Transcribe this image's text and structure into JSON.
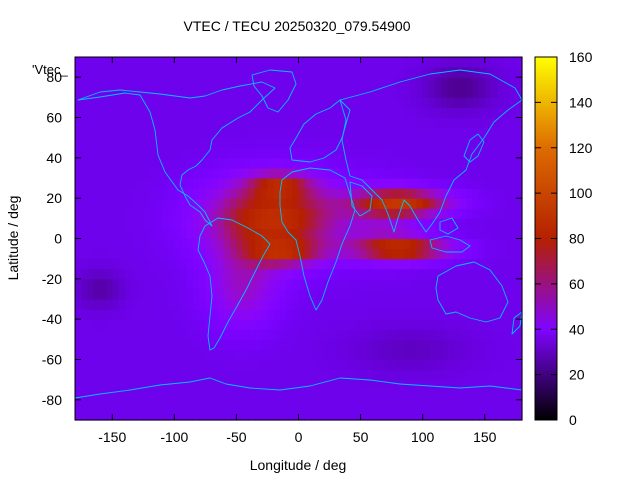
{
  "chart_data": {
    "type": "heatmap",
    "title": "VTEC / TECU 20250320_079.54900",
    "xlabel": "Longitude / deg",
    "ylabel": "Latitude / deg",
    "key_label": "'Vtec_",
    "xlim": [
      -180,
      180
    ],
    "ylim": [
      -90,
      90
    ],
    "x_ticks": [
      -150,
      -100,
      -50,
      0,
      50,
      100,
      150
    ],
    "y_ticks": [
      -80,
      -60,
      -40,
      -20,
      0,
      20,
      40,
      60,
      80
    ],
    "colorbar": {
      "range": [
        0,
        160
      ],
      "ticks": [
        0,
        20,
        40,
        60,
        80,
        100,
        120,
        140,
        160
      ]
    },
    "grid": false,
    "grid_step_deg": [
      5,
      5
    ],
    "vtec_model": {
      "background": 30,
      "blobs": [
        {
          "lon": -20,
          "lat": 10,
          "slon": 55,
          "slat": 20,
          "amp": 60
        },
        {
          "lon": -45,
          "lat": -25,
          "slon": 30,
          "slat": 20,
          "amp": 25
        },
        {
          "lon": -15,
          "lat": 27,
          "slon": 25,
          "slat": 6,
          "amp": 30
        },
        {
          "lon": -10,
          "lat": -7,
          "slon": 30,
          "slat": 6,
          "amp": 30
        },
        {
          "lon": 85,
          "lat": 18,
          "slon": 40,
          "slat": 7,
          "amp": 55
        },
        {
          "lon": 85,
          "lat": -5,
          "slon": 40,
          "slat": 6,
          "amp": 55
        },
        {
          "lon": 70,
          "lat": 8,
          "slon": 30,
          "slat": 18,
          "amp": 15
        },
        {
          "lon": -160,
          "lat": -25,
          "slon": 20,
          "slat": 10,
          "amp": -12
        },
        {
          "lon": 130,
          "lat": 75,
          "slon": 30,
          "slat": 12,
          "amp": -15
        },
        {
          "lon": 90,
          "lat": -55,
          "slon": 50,
          "slat": 12,
          "amp": -8
        }
      ]
    },
    "coastlines_color": "#00c0ff"
  }
}
